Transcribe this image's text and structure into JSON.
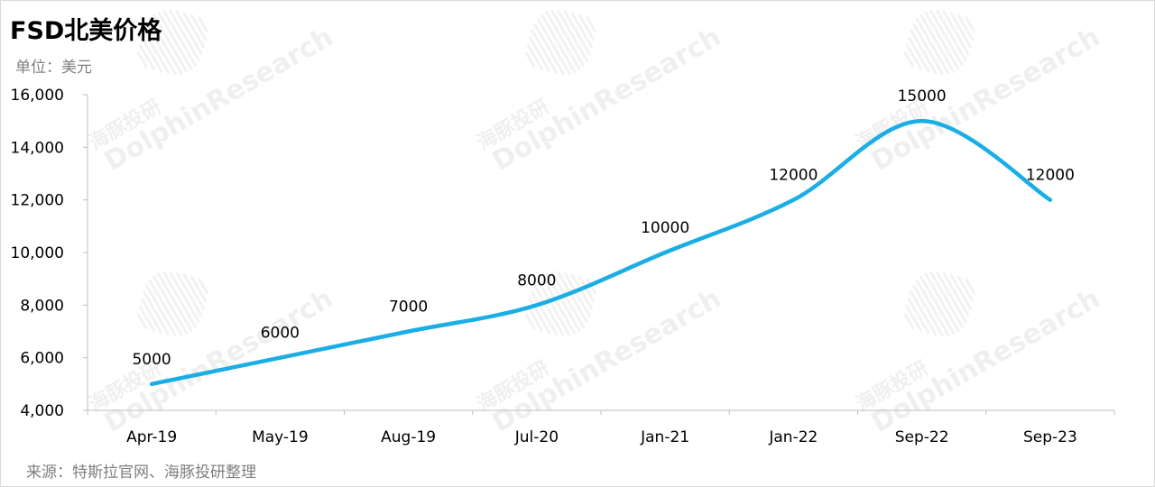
{
  "title": "FSD北美价格",
  "unit_label": "单位：美元",
  "source_label": "来源：特斯拉官网、海豚投研整理",
  "watermark": {
    "en": "DolphinResearch",
    "cn": "海豚投研"
  },
  "colors": {
    "line": "#1aaee5",
    "axis": "#bfbfbf",
    "text": "#000000",
    "muted": "#7f7f7f"
  },
  "chart_data": {
    "type": "line",
    "categories": [
      "Apr-19",
      "May-19",
      "Aug-19",
      "Jul-20",
      "Jan-21",
      "Jan-22",
      "Sep-22",
      "Sep-23"
    ],
    "values": [
      5000,
      6000,
      7000,
      8000,
      10000,
      12000,
      15000,
      12000
    ],
    "data_labels": [
      "5000",
      "6000",
      "7000",
      "8000",
      "10000",
      "12000",
      "15000",
      "12000"
    ],
    "yticks": [
      4000,
      6000,
      8000,
      10000,
      12000,
      14000,
      16000
    ],
    "ytick_labels": [
      "4,000",
      "6,000",
      "8,000",
      "10,000",
      "12,000",
      "14,000",
      "16,000"
    ],
    "ylim": [
      4000,
      16000
    ],
    "smooth": true,
    "grid": false,
    "legend": "none"
  }
}
